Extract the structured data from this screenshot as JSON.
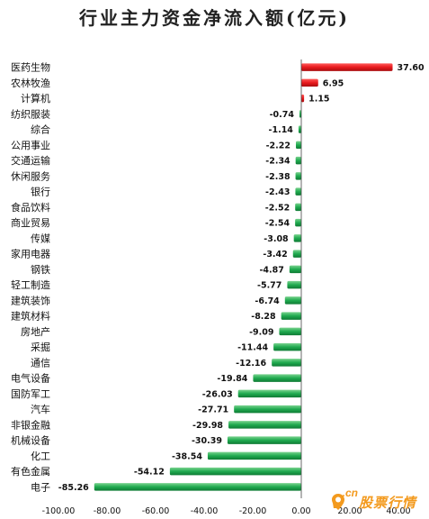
{
  "chart_data": {
    "type": "bar",
    "orientation": "horizontal",
    "title": "行业主力资金净流入额(亿元)",
    "xlim": [
      -100,
      40
    ],
    "x_ticks": [
      "-100.00",
      "-80.00",
      "-60.00",
      "-40.00",
      "-20.00",
      "0.00",
      "20.00",
      "40.00"
    ],
    "grid": false,
    "colors": {
      "positive": "#e8191d",
      "negative": "#1faa4f"
    },
    "categories": [
      "医药生物",
      "农林牧渔",
      "计算机",
      "纺织服装",
      "综合",
      "公用事业",
      "交通运输",
      "休闲服务",
      "银行",
      "食品饮料",
      "商业贸易",
      "传媒",
      "家用电器",
      "钢铁",
      "轻工制造",
      "建筑装饰",
      "建筑材料",
      "房地产",
      "采掘",
      "通信",
      "电气设备",
      "国防军工",
      "汽车",
      "非银金融",
      "机械设备",
      "化工",
      "有色金属",
      "电子"
    ],
    "values": [
      37.6,
      6.95,
      1.15,
      -0.74,
      -1.14,
      -2.22,
      -2.34,
      -2.38,
      -2.43,
      -2.52,
      -2.54,
      -3.08,
      -3.42,
      -4.87,
      -5.77,
      -6.74,
      -8.28,
      -9.09,
      -11.44,
      -12.16,
      -19.84,
      -26.03,
      -27.71,
      -29.98,
      -30.39,
      -38.54,
      -54.12,
      -85.26
    ],
    "value_labels": [
      "37.60",
      "6.95",
      "1.15",
      "-0.74",
      "-1.14",
      "-2.22",
      "-2.34",
      "-2.38",
      "-2.43",
      "-2.52",
      "-2.54",
      "-3.08",
      "-3.42",
      "-4.87",
      "-5.77",
      "-6.74",
      "-8.28",
      "-9.09",
      "-11.44",
      "-12.16",
      "-19.84",
      "-26.03",
      "-27.71",
      "-29.98",
      "-30.39",
      "-38.54",
      "-54.12",
      "-85.26"
    ]
  },
  "watermark": {
    "letter": "v",
    "domain": ".cn",
    "name": "股票行情",
    "color": "#f39a1e"
  }
}
